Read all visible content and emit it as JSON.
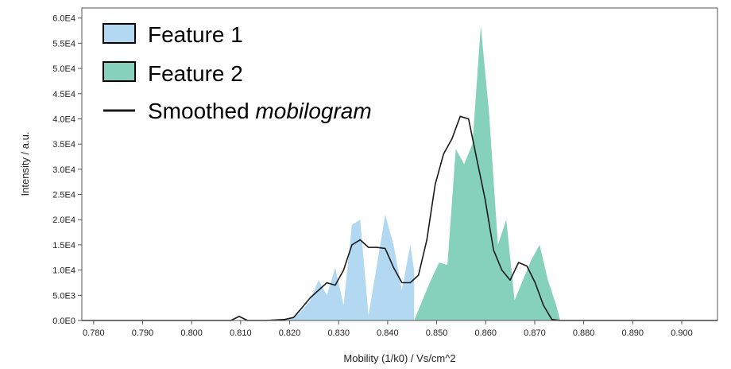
{
  "chart_data": {
    "type": "area",
    "xlabel": "Mobility (1/k0) / Vs/cm^2",
    "ylabel": "Intensity / a.u.",
    "xlim": [
      0.7776,
      0.9073
    ],
    "ylim": [
      0,
      62000
    ],
    "x_ticks": [
      0.78,
      0.79,
      0.8,
      0.81,
      0.82,
      0.83,
      0.84,
      0.85,
      0.86,
      0.87,
      0.88,
      0.89,
      0.9
    ],
    "x_tick_labels": [
      "0.780",
      "0.790",
      "0.800",
      "0.810",
      "0.820",
      "0.830",
      "0.840",
      "0.850",
      "0.860",
      "0.870",
      "0.880",
      "0.890",
      "0.900"
    ],
    "y_ticks": [
      0,
      5000,
      10000,
      15000,
      20000,
      25000,
      30000,
      35000,
      40000,
      45000,
      50000,
      55000,
      60000
    ],
    "y_tick_labels": [
      "0.0E0",
      "5.0E3",
      "1.0E4",
      "1.5E4",
      "2.0E4",
      "2.5E4",
      "3.0E4",
      "3.5E4",
      "4.0E4",
      "4.5E4",
      "5.0E4",
      "5.5E4",
      "6.0E4"
    ],
    "grid": false,
    "legend_position": "top-left",
    "series": [
      {
        "name": "Feature 1",
        "kind": "area",
        "color": "#b3d9f2",
        "x": [
          0.7776,
          0.8191,
          0.8208,
          0.8225,
          0.8242,
          0.8259,
          0.8276,
          0.8293,
          0.831,
          0.8327,
          0.8344,
          0.8361,
          0.8378,
          0.8395,
          0.8412,
          0.8429,
          0.8446,
          0.8454,
          0.8454,
          0.9073
        ],
        "y": [
          0,
          0,
          500,
          2000,
          4000,
          8000,
          5000,
          10500,
          3000,
          19000,
          20000,
          1000,
          11000,
          21000,
          15000,
          6000,
          15000,
          10000,
          0,
          0
        ]
      },
      {
        "name": "Feature 2",
        "kind": "area",
        "color": "#86d1bb",
        "x": [
          0.7776,
          0.8454,
          0.8471,
          0.8488,
          0.8505,
          0.8522,
          0.8539,
          0.8556,
          0.8573,
          0.859,
          0.8607,
          0.8625,
          0.8642,
          0.8659,
          0.8676,
          0.8693,
          0.871,
          0.8727,
          0.8744,
          0.8752,
          0.9073
        ],
        "y": [
          0,
          0,
          4000,
          8000,
          11500,
          11000,
          34000,
          31000,
          35000,
          58500,
          41000,
          15000,
          20000,
          4000,
          8000,
          12000,
          15000,
          8000,
          3000,
          0,
          0
        ]
      },
      {
        "name": "Smoothed mobilogram",
        "kind": "line",
        "color": "#1a1a1a",
        "x": [
          0.7776,
          0.808,
          0.8097,
          0.8114,
          0.815,
          0.819,
          0.8208,
          0.8225,
          0.8242,
          0.8259,
          0.8276,
          0.8293,
          0.831,
          0.8327,
          0.8344,
          0.8361,
          0.8378,
          0.8395,
          0.8412,
          0.8429,
          0.8446,
          0.8463,
          0.848,
          0.8497,
          0.8514,
          0.8531,
          0.8548,
          0.8565,
          0.8582,
          0.8599,
          0.8616,
          0.8633,
          0.865,
          0.8667,
          0.8684,
          0.8701,
          0.8718,
          0.8735,
          0.8752,
          0.8769,
          0.9073
        ],
        "y": [
          0,
          0,
          800,
          0,
          0,
          200,
          600,
          2500,
          4500,
          6000,
          7500,
          7000,
          10000,
          15000,
          16000,
          14500,
          14500,
          14300,
          10500,
          7500,
          7500,
          9000,
          16000,
          27000,
          33000,
          36000,
          40500,
          40000,
          32000,
          24000,
          14000,
          10000,
          8000,
          11500,
          10800,
          7500,
          3000,
          200,
          0,
          0,
          0
        ]
      }
    ],
    "legend": [
      {
        "label": "Feature 1",
        "swatch": "box",
        "color": "#b3d9f2"
      },
      {
        "label": "Feature 2",
        "swatch": "box",
        "color": "#86d1bb"
      },
      {
        "label": "Smoothed ",
        "label_italic": "mobilogram",
        "swatch": "line",
        "color": "#1a1a1a"
      }
    ]
  }
}
